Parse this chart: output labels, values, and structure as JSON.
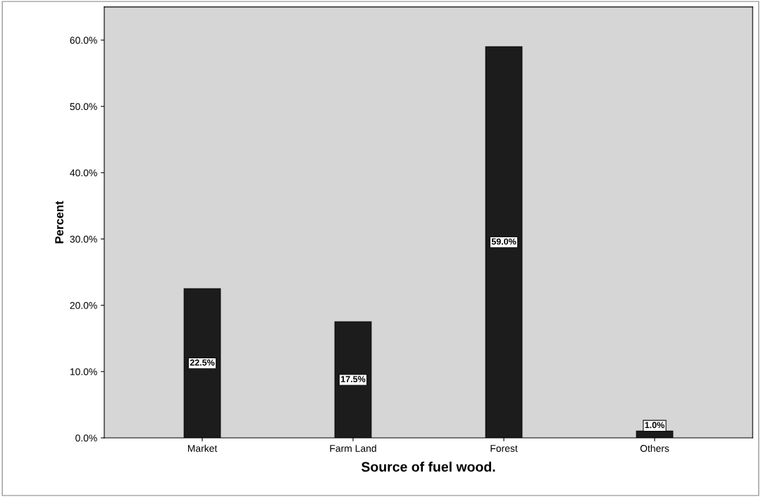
{
  "chart_data": {
    "type": "bar",
    "xlabel": "Source of fuel wood.",
    "ylabel": "Percent",
    "categories": [
      "Market",
      "Farm Land",
      "Forest",
      "Others"
    ],
    "values": [
      22.5,
      17.5,
      59.0,
      1.0
    ],
    "value_labels": [
      "22.5%",
      "17.5%",
      "59.0%",
      "1.0%"
    ],
    "color": "#1c1c1c",
    "ylim": [
      0,
      65
    ],
    "yticks": [
      {
        "value": 0,
        "label": "0.0%"
      },
      {
        "value": 10,
        "label": "10.0%"
      },
      {
        "value": 20,
        "label": "20.0%"
      },
      {
        "value": 30,
        "label": "30.0%"
      },
      {
        "value": 40,
        "label": "40.0%"
      },
      {
        "value": 50,
        "label": "50.0%"
      },
      {
        "value": 60,
        "label": "60.0%"
      }
    ],
    "grid": false,
    "legend": false
  }
}
